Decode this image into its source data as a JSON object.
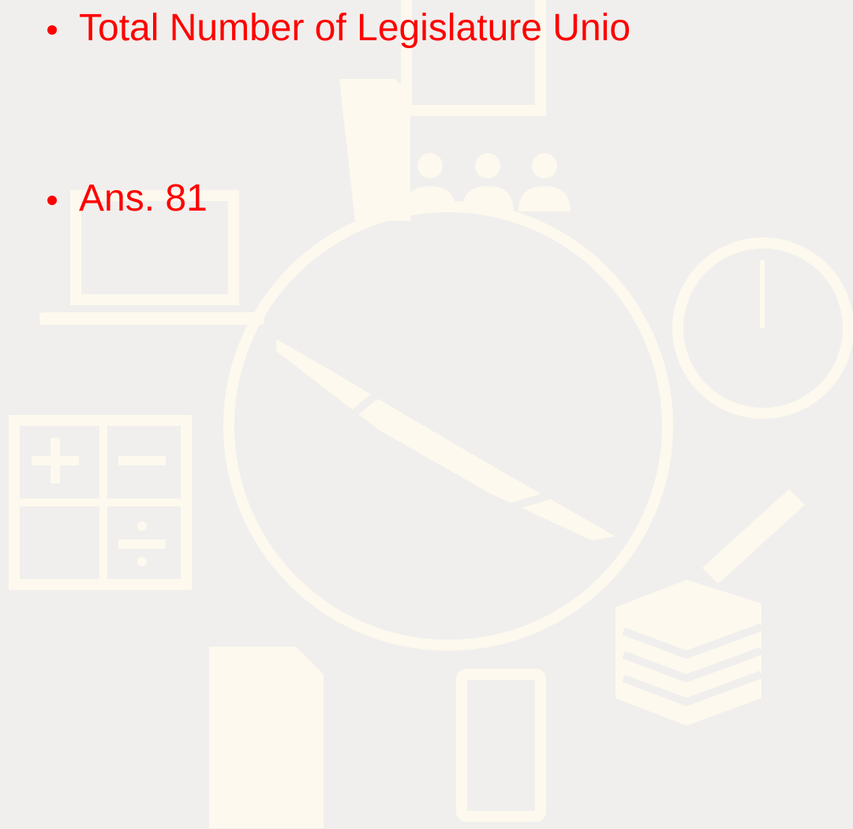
{
  "slide": {
    "bullets": [
      "Total Number of Legislature Unio",
      "Ans. 81"
    ]
  }
}
